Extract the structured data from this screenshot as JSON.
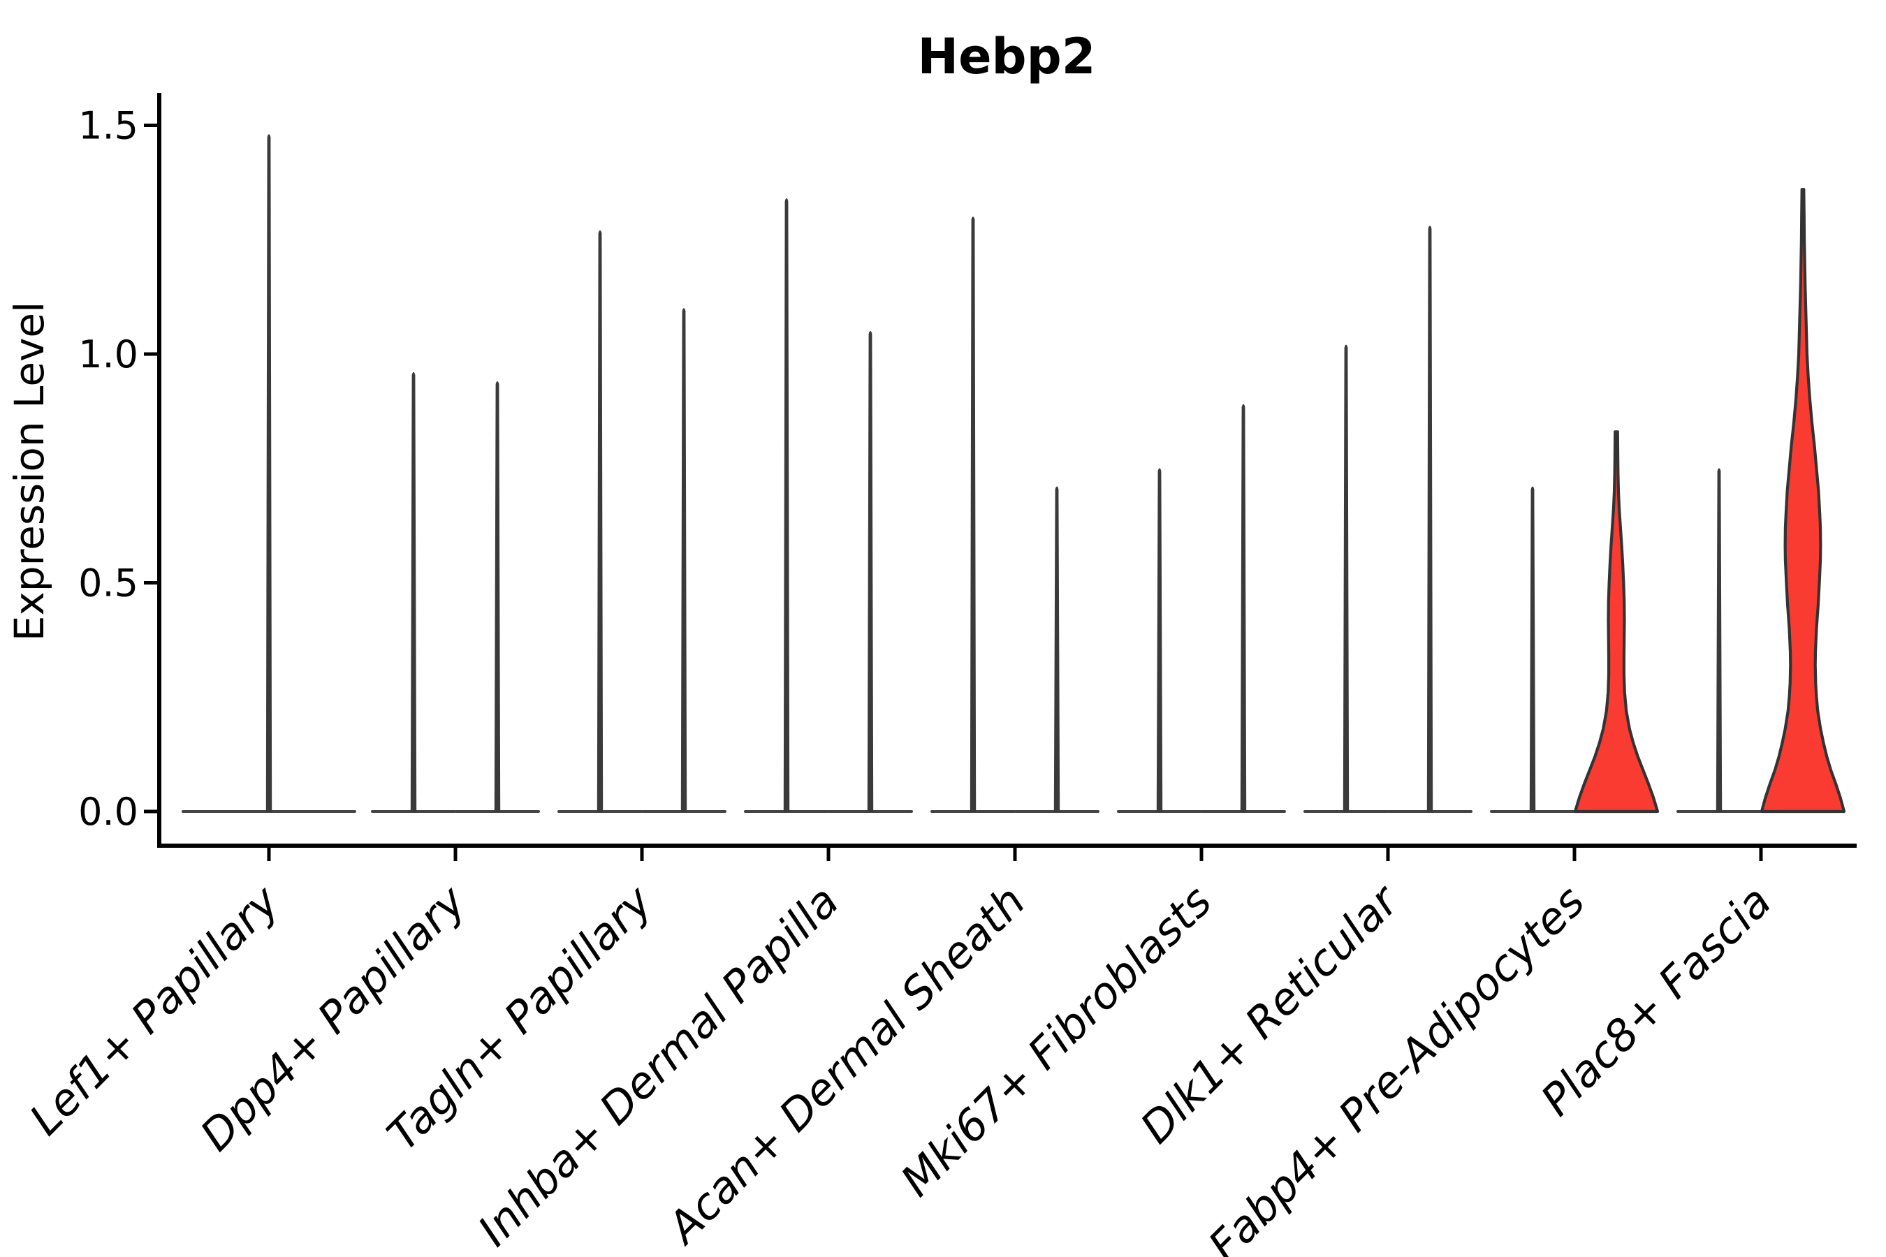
{
  "title": "Hebp2",
  "ylabel": "Expression Level",
  "colors": {
    "background": "#ffffff",
    "axis": "#000000",
    "violin_outline": "#333333",
    "spike": "#3a3a3a",
    "baseline": "#444444",
    "red_fill": "#f93b31"
  },
  "chart_data": {
    "type": "violin",
    "title": "Hebp2",
    "xlabel": "",
    "ylabel": "Expression Level",
    "ylim": [
      -0.08,
      1.57
    ],
    "yticks": [
      0.0,
      0.5,
      1.0,
      1.5
    ],
    "ytick_labels": [
      "0.0",
      "0.5",
      "1.0",
      "1.5"
    ],
    "grid": false,
    "legend": "none",
    "categories": [
      "Lef1+ Papillary",
      "Dpp4+ Papillary",
      "Tagln+ Papillary",
      "Inhba+ Dermal Papilla",
      "Acan+ Dermal Sheath",
      "Mki67+ Fibroblasts",
      "Dlk1+ Reticular",
      "Fabp4+ Pre-Adipocytes",
      "Plac8+ Fascia"
    ],
    "violins": [
      {
        "category": "Lef1+ Papillary",
        "slot": "single",
        "shape": "spike",
        "max": 1.48,
        "min": 0.0
      },
      {
        "category": "Dpp4+ Papillary",
        "slot": "left",
        "shape": "spike",
        "max": 0.96,
        "min": 0.0
      },
      {
        "category": "Dpp4+ Papillary",
        "slot": "right",
        "shape": "spike",
        "max": 0.94,
        "min": 0.0
      },
      {
        "category": "Tagln+ Papillary",
        "slot": "left",
        "shape": "spike",
        "max": 1.27,
        "min": 0.0
      },
      {
        "category": "Tagln+ Papillary",
        "slot": "right",
        "shape": "spike",
        "max": 1.1,
        "min": 0.0
      },
      {
        "category": "Inhba+ Dermal Papilla",
        "slot": "left",
        "shape": "spike",
        "max": 1.34,
        "min": 0.0
      },
      {
        "category": "Inhba+ Dermal Papilla",
        "slot": "right",
        "shape": "spike",
        "max": 1.05,
        "min": 0.0
      },
      {
        "category": "Acan+ Dermal Sheath",
        "slot": "left",
        "shape": "spike",
        "max": 1.3,
        "min": 0.0
      },
      {
        "category": "Acan+ Dermal Sheath",
        "slot": "right",
        "shape": "spike",
        "max": 0.71,
        "min": 0.0
      },
      {
        "category": "Mki67+ Fibroblasts",
        "slot": "left",
        "shape": "spike",
        "max": 0.75,
        "min": 0.0
      },
      {
        "category": "Mki67+ Fibroblasts",
        "slot": "right",
        "shape": "spike",
        "max": 0.89,
        "min": 0.0
      },
      {
        "category": "Dlk1+ Reticular",
        "slot": "left",
        "shape": "spike",
        "max": 1.02,
        "min": 0.0
      },
      {
        "category": "Dlk1+ Reticular",
        "slot": "right",
        "shape": "spike",
        "max": 1.28,
        "min": 0.0
      },
      {
        "category": "Fabp4+ Pre-Adipocytes",
        "slot": "left",
        "shape": "spike",
        "max": 0.71,
        "min": 0.0
      },
      {
        "category": "Fabp4+ Pre-Adipocytes",
        "slot": "right",
        "shape": "density",
        "max": 0.83,
        "min": 0.0,
        "fill": "#f93b31",
        "profile": [
          [
            0.83,
            0.03
          ],
          [
            0.78,
            0.035
          ],
          [
            0.74,
            0.04
          ],
          [
            0.7,
            0.05
          ],
          [
            0.66,
            0.07
          ],
          [
            0.62,
            0.1
          ],
          [
            0.58,
            0.13
          ],
          [
            0.54,
            0.155
          ],
          [
            0.5,
            0.175
          ],
          [
            0.46,
            0.19
          ],
          [
            0.42,
            0.195
          ],
          [
            0.38,
            0.19
          ],
          [
            0.34,
            0.185
          ],
          [
            0.3,
            0.185
          ],
          [
            0.26,
            0.2
          ],
          [
            0.22,
            0.24
          ],
          [
            0.18,
            0.32
          ],
          [
            0.15,
            0.41
          ],
          [
            0.12,
            0.52
          ],
          [
            0.09,
            0.65
          ],
          [
            0.06,
            0.78
          ],
          [
            0.03,
            0.9
          ],
          [
            0.0,
            1.0
          ]
        ]
      },
      {
        "category": "Plac8+ Fascia",
        "slot": "left",
        "shape": "spike",
        "max": 0.75,
        "min": 0.0
      },
      {
        "category": "Plac8+ Fascia",
        "slot": "right",
        "shape": "density",
        "max": 1.36,
        "min": 0.0,
        "fill": "#f93b31",
        "profile": [
          [
            1.36,
            0.022
          ],
          [
            1.3,
            0.03
          ],
          [
            1.25,
            0.035
          ],
          [
            1.2,
            0.045
          ],
          [
            1.15,
            0.055
          ],
          [
            1.1,
            0.07
          ],
          [
            1.05,
            0.085
          ],
          [
            1.0,
            0.1
          ],
          [
            0.95,
            0.13
          ],
          [
            0.9,
            0.17
          ],
          [
            0.85,
            0.22
          ],
          [
            0.8,
            0.28
          ],
          [
            0.75,
            0.33
          ],
          [
            0.7,
            0.38
          ],
          [
            0.65,
            0.41
          ],
          [
            0.62,
            0.425
          ],
          [
            0.58,
            0.43
          ],
          [
            0.55,
            0.425
          ],
          [
            0.5,
            0.4
          ],
          [
            0.45,
            0.37
          ],
          [
            0.4,
            0.33
          ],
          [
            0.35,
            0.305
          ],
          [
            0.32,
            0.3
          ],
          [
            0.28,
            0.31
          ],
          [
            0.25,
            0.33
          ],
          [
            0.22,
            0.36
          ],
          [
            0.18,
            0.43
          ],
          [
            0.15,
            0.5
          ],
          [
            0.12,
            0.58
          ],
          [
            0.09,
            0.68
          ],
          [
            0.06,
            0.8
          ],
          [
            0.03,
            0.91
          ],
          [
            0.0,
            1.0
          ]
        ]
      }
    ]
  }
}
